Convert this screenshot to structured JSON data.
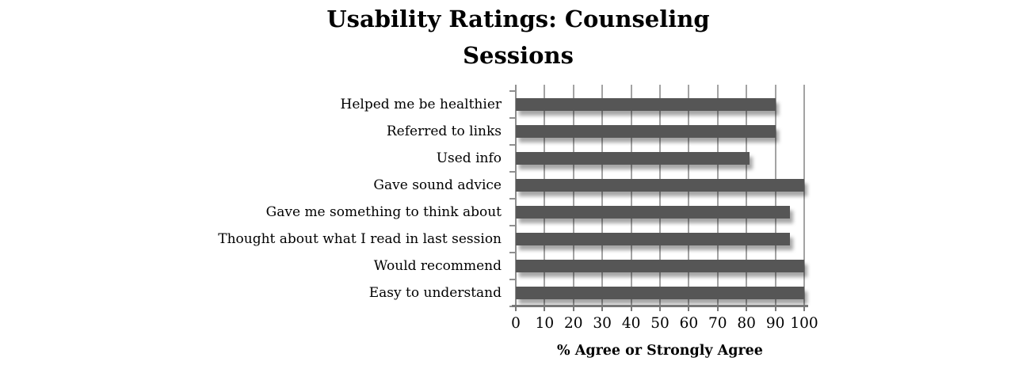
{
  "display": {
    "title_line1": "Usability Ratings: Counseling",
    "title_line2": "Sessions"
  },
  "chart_data": {
    "type": "bar",
    "orientation": "horizontal",
    "title": "Usability Ratings: Counseling Sessions",
    "categories": [
      "Helped me be healthier",
      "Referred to links",
      "Used info",
      "Gave sound advice",
      "Gave me something to think about",
      "Thought about what I read in last session",
      "Would recommend",
      "Easy to understand"
    ],
    "values": [
      90,
      90,
      81,
      100,
      95,
      95,
      100,
      100
    ],
    "xlabel": "% Agree or Strongly Agree",
    "ylabel": "",
    "xlim": [
      0,
      100
    ],
    "xticks": [
      0,
      10,
      20,
      30,
      40,
      50,
      60,
      70,
      80,
      90,
      100
    ],
    "grid": "vertical-major-only",
    "legend": "none",
    "bar_color": "#565656",
    "gridline_color": "#a3a3a3",
    "axis_color": "#787878",
    "background_color": "#ffffff"
  }
}
